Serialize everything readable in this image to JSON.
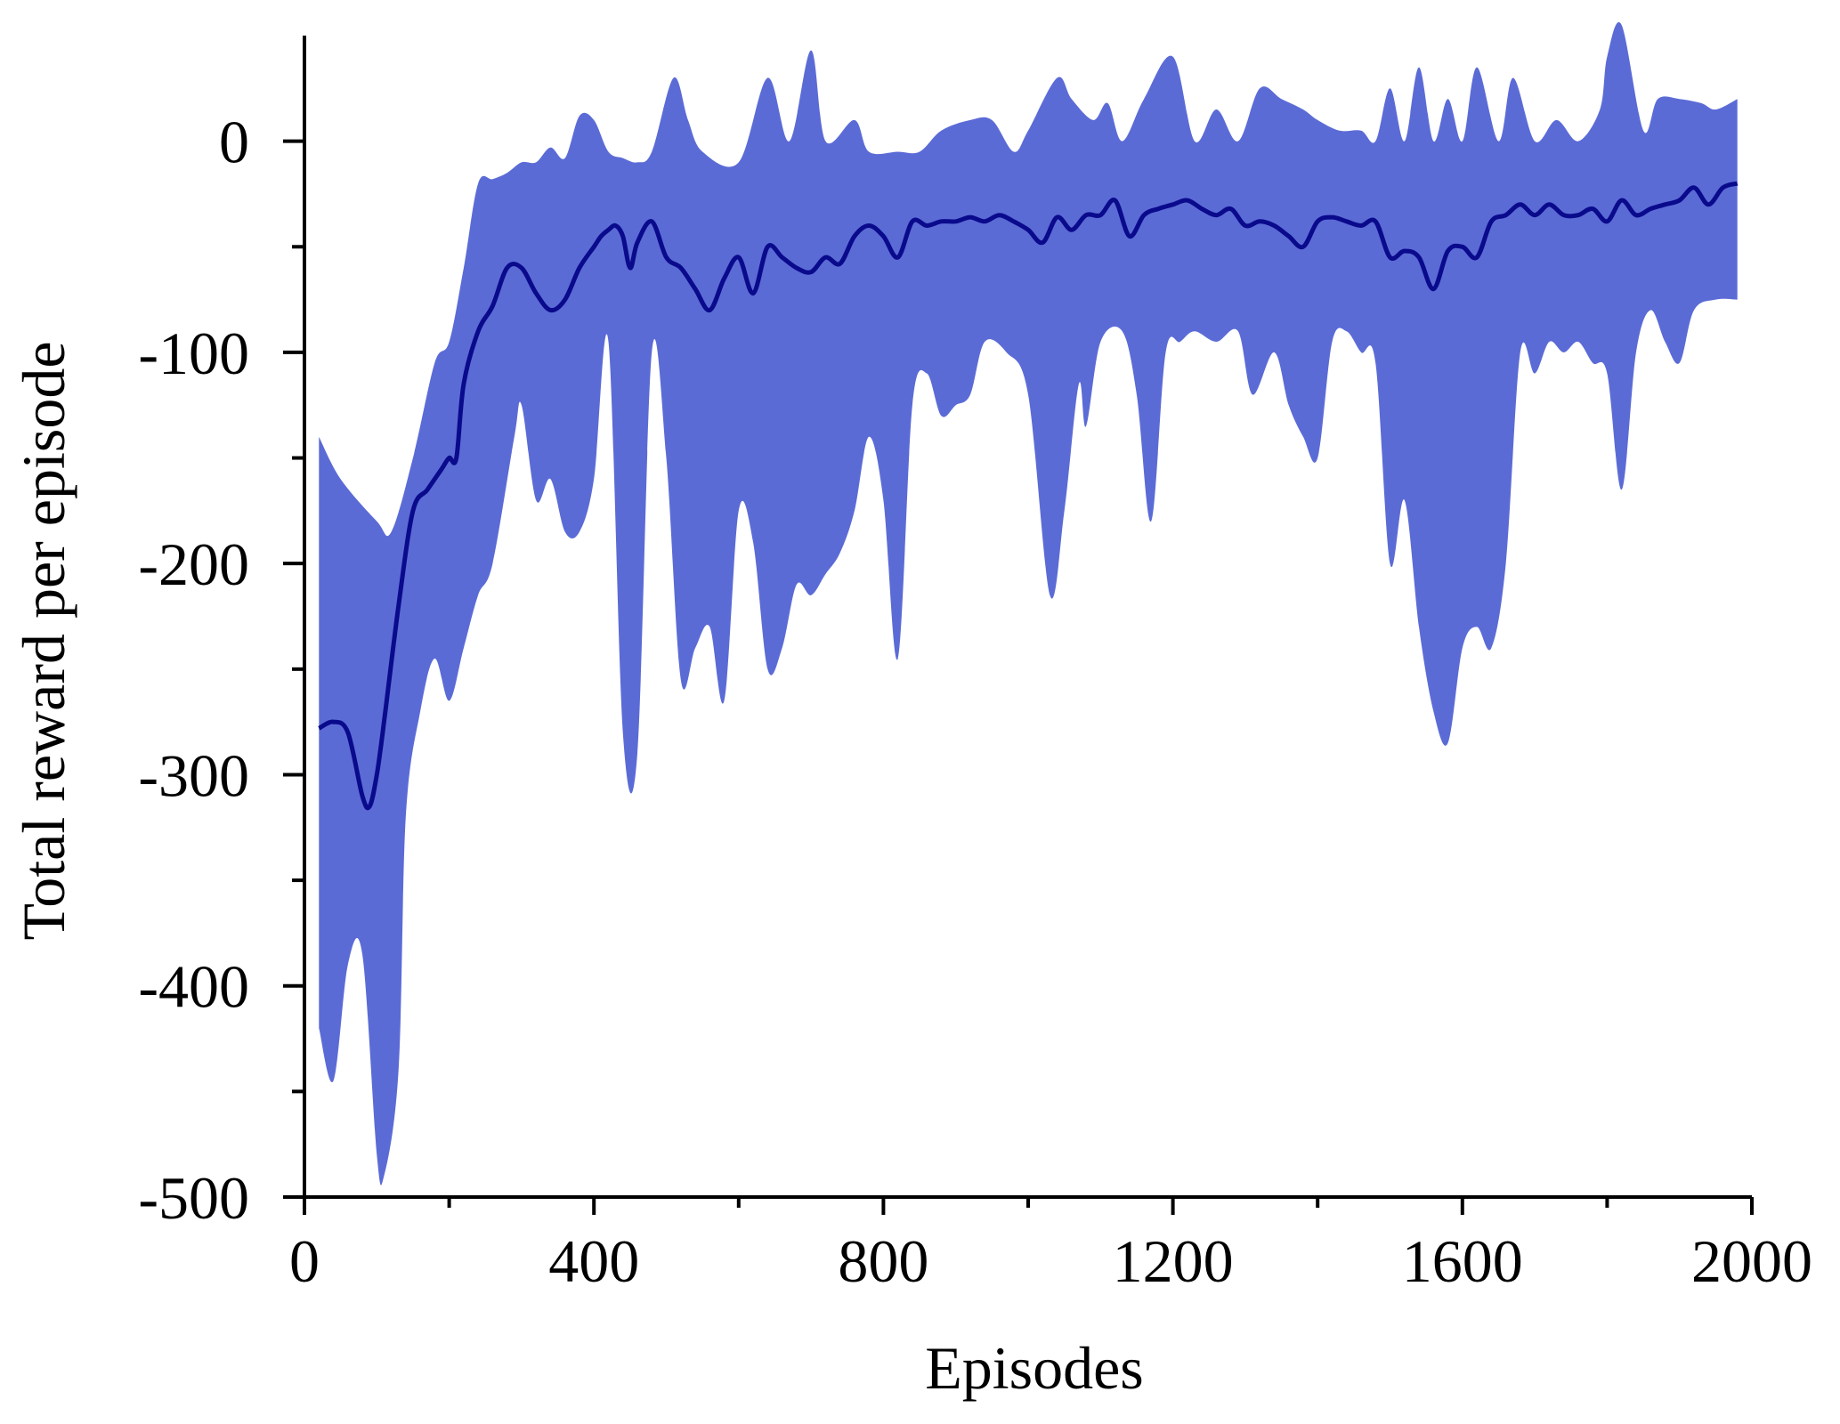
{
  "chart_data": {
    "type": "line",
    "xlabel": "Episodes",
    "ylabel": "Total reward per episode",
    "xlim": [
      0,
      2000
    ],
    "ylim": [
      -500,
      50
    ],
    "xticks": [
      0,
      400,
      800,
      1200,
      1600,
      2000
    ],
    "xtick_labels": [
      "0",
      "400",
      "800",
      "1200",
      "1600",
      "2000"
    ],
    "xminor_ticks": [
      200,
      600,
      1000,
      1400,
      1800
    ],
    "yticks": [
      -500,
      -400,
      -300,
      -200,
      -100,
      0
    ],
    "ytick_labels": [
      "-500",
      "-400",
      "-300",
      "-200",
      "-100",
      "0"
    ],
    "yminor_ticks": [
      -450,
      -350,
      -250,
      -150,
      -50
    ],
    "grid": false,
    "legend": "none",
    "colors": {
      "band": "#5b6bd6",
      "line": "#0a0a8c",
      "axis": "#000000"
    },
    "band": {
      "upper": [
        [
          20,
          -140
        ],
        [
          50,
          -160
        ],
        [
          100,
          -180
        ],
        [
          120,
          -185
        ],
        [
          150,
          -150
        ],
        [
          180,
          -105
        ],
        [
          200,
          -95
        ],
        [
          220,
          -60
        ],
        [
          240,
          -20
        ],
        [
          260,
          -18
        ],
        [
          280,
          -15
        ],
        [
          300,
          -10
        ],
        [
          320,
          -10
        ],
        [
          340,
          -3
        ],
        [
          360,
          -8
        ],
        [
          380,
          12
        ],
        [
          400,
          10
        ],
        [
          420,
          -5
        ],
        [
          440,
          -8
        ],
        [
          460,
          -10
        ],
        [
          480,
          -5
        ],
        [
          510,
          30
        ],
        [
          530,
          10
        ],
        [
          550,
          -5
        ],
        [
          600,
          -10
        ],
        [
          640,
          30
        ],
        [
          670,
          0
        ],
        [
          700,
          43
        ],
        [
          720,
          0
        ],
        [
          760,
          10
        ],
        [
          780,
          -5
        ],
        [
          820,
          -5
        ],
        [
          850,
          -5
        ],
        [
          880,
          5
        ],
        [
          920,
          10
        ],
        [
          950,
          10
        ],
        [
          980,
          -5
        ],
        [
          1000,
          5
        ],
        [
          1040,
          30
        ],
        [
          1060,
          20
        ],
        [
          1090,
          10
        ],
        [
          1110,
          18
        ],
        [
          1130,
          0
        ],
        [
          1160,
          20
        ],
        [
          1200,
          40
        ],
        [
          1230,
          0
        ],
        [
          1260,
          15
        ],
        [
          1290,
          0
        ],
        [
          1320,
          25
        ],
        [
          1350,
          20
        ],
        [
          1380,
          15
        ],
        [
          1400,
          10
        ],
        [
          1430,
          5
        ],
        [
          1460,
          5
        ],
        [
          1480,
          0
        ],
        [
          1500,
          25
        ],
        [
          1520,
          0
        ],
        [
          1540,
          35
        ],
        [
          1560,
          0
        ],
        [
          1580,
          20
        ],
        [
          1600,
          0
        ],
        [
          1620,
          35
        ],
        [
          1650,
          0
        ],
        [
          1670,
          30
        ],
        [
          1700,
          0
        ],
        [
          1730,
          10
        ],
        [
          1760,
          0
        ],
        [
          1790,
          15
        ],
        [
          1800,
          40
        ],
        [
          1820,
          55
        ],
        [
          1850,
          5
        ],
        [
          1870,
          20
        ],
        [
          1900,
          20
        ],
        [
          1930,
          18
        ],
        [
          1950,
          15
        ],
        [
          1980,
          20
        ]
      ],
      "lower": [
        [
          20,
          -420
        ],
        [
          40,
          -445
        ],
        [
          60,
          -390
        ],
        [
          80,
          -385
        ],
        [
          100,
          -480
        ],
        [
          110,
          -490
        ],
        [
          130,
          -440
        ],
        [
          140,
          -320
        ],
        [
          160,
          -270
        ],
        [
          180,
          -245
        ],
        [
          200,
          -265
        ],
        [
          220,
          -240
        ],
        [
          240,
          -215
        ],
        [
          260,
          -200
        ],
        [
          290,
          -140
        ],
        [
          300,
          -125
        ],
        [
          320,
          -170
        ],
        [
          340,
          -160
        ],
        [
          360,
          -185
        ],
        [
          380,
          -185
        ],
        [
          400,
          -160
        ],
        [
          420,
          -95
        ],
        [
          440,
          -280
        ],
        [
          460,
          -290
        ],
        [
          480,
          -100
        ],
        [
          500,
          -150
        ],
        [
          520,
          -255
        ],
        [
          540,
          -240
        ],
        [
          560,
          -230
        ],
        [
          580,
          -265
        ],
        [
          600,
          -175
        ],
        [
          620,
          -190
        ],
        [
          640,
          -250
        ],
        [
          660,
          -240
        ],
        [
          680,
          -210
        ],
        [
          700,
          -215
        ],
        [
          720,
          -205
        ],
        [
          740,
          -195
        ],
        [
          760,
          -175
        ],
        [
          780,
          -140
        ],
        [
          800,
          -170
        ],
        [
          820,
          -245
        ],
        [
          840,
          -125
        ],
        [
          860,
          -110
        ],
        [
          880,
          -130
        ],
        [
          900,
          -125
        ],
        [
          920,
          -120
        ],
        [
          940,
          -95
        ],
        [
          970,
          -100
        ],
        [
          1000,
          -120
        ],
        [
          1030,
          -215
        ],
        [
          1050,
          -175
        ],
        [
          1070,
          -115
        ],
        [
          1080,
          -135
        ],
        [
          1100,
          -95
        ],
        [
          1130,
          -90
        ],
        [
          1150,
          -120
        ],
        [
          1170,
          -180
        ],
        [
          1190,
          -100
        ],
        [
          1210,
          -95
        ],
        [
          1230,
          -90
        ],
        [
          1260,
          -95
        ],
        [
          1290,
          -90
        ],
        [
          1310,
          -120
        ],
        [
          1340,
          -100
        ],
        [
          1360,
          -125
        ],
        [
          1380,
          -140
        ],
        [
          1400,
          -150
        ],
        [
          1420,
          -95
        ],
        [
          1440,
          -90
        ],
        [
          1460,
          -100
        ],
        [
          1480,
          -105
        ],
        [
          1500,
          -200
        ],
        [
          1520,
          -170
        ],
        [
          1540,
          -230
        ],
        [
          1560,
          -270
        ],
        [
          1580,
          -285
        ],
        [
          1600,
          -240
        ],
        [
          1620,
          -230
        ],
        [
          1640,
          -240
        ],
        [
          1660,
          -200
        ],
        [
          1680,
          -100
        ],
        [
          1700,
          -110
        ],
        [
          1720,
          -95
        ],
        [
          1740,
          -100
        ],
        [
          1760,
          -95
        ],
        [
          1780,
          -105
        ],
        [
          1800,
          -110
        ],
        [
          1820,
          -165
        ],
        [
          1840,
          -100
        ],
        [
          1860,
          -80
        ],
        [
          1880,
          -95
        ],
        [
          1900,
          -105
        ],
        [
          1920,
          -80
        ],
        [
          1950,
          -75
        ],
        [
          1980,
          -75
        ]
      ]
    },
    "series": [
      {
        "x": [
          20,
          40,
          60,
          80,
          90,
          100,
          110,
          130,
          150,
          170,
          190,
          200,
          210,
          220,
          240,
          260,
          280,
          300,
          320,
          340,
          360,
          380,
          400,
          410,
          420,
          430,
          440,
          450,
          460,
          480,
          500,
          520,
          540,
          560,
          580,
          600,
          620,
          640,
          660,
          680,
          700,
          720,
          740,
          760,
          780,
          800,
          820,
          840,
          860,
          880,
          900,
          920,
          940,
          960,
          980,
          1000,
          1020,
          1040,
          1060,
          1080,
          1100,
          1120,
          1140,
          1160,
          1180,
          1200,
          1220,
          1240,
          1260,
          1280,
          1300,
          1320,
          1340,
          1360,
          1380,
          1400,
          1420,
          1440,
          1460,
          1480,
          1500,
          1520,
          1540,
          1560,
          1580,
          1600,
          1620,
          1640,
          1660,
          1680,
          1700,
          1720,
          1740,
          1760,
          1780,
          1800,
          1820,
          1840,
          1860,
          1880,
          1900,
          1920,
          1940,
          1960,
          1980
        ],
        "y": [
          -278,
          -275,
          -280,
          -310,
          -315,
          -300,
          -275,
          -220,
          -175,
          -165,
          -155,
          -150,
          -150,
          -115,
          -90,
          -78,
          -60,
          -60,
          -72,
          -80,
          -75,
          -60,
          -50,
          -45,
          -42,
          -40,
          -45,
          -60,
          -48,
          -38,
          -55,
          -60,
          -70,
          -80,
          -65,
          -55,
          -72,
          -50,
          -55,
          -60,
          -62,
          -55,
          -58,
          -45,
          -40,
          -45,
          -55,
          -38,
          -40,
          -38,
          -38,
          -36,
          -38,
          -35,
          -38,
          -42,
          -48,
          -36,
          -42,
          -35,
          -35,
          -28,
          -45,
          -35,
          -32,
          -30,
          -28,
          -32,
          -35,
          -32,
          -40,
          -38,
          -40,
          -45,
          -50,
          -38,
          -36,
          -38,
          -40,
          -38,
          -55,
          -52,
          -55,
          -70,
          -52,
          -50,
          -55,
          -38,
          -35,
          -30,
          -35,
          -30,
          -35,
          -35,
          -32,
          -38,
          -28,
          -35,
          -32,
          -30,
          -28,
          -22,
          -30,
          -22,
          -20
        ]
      }
    ]
  }
}
